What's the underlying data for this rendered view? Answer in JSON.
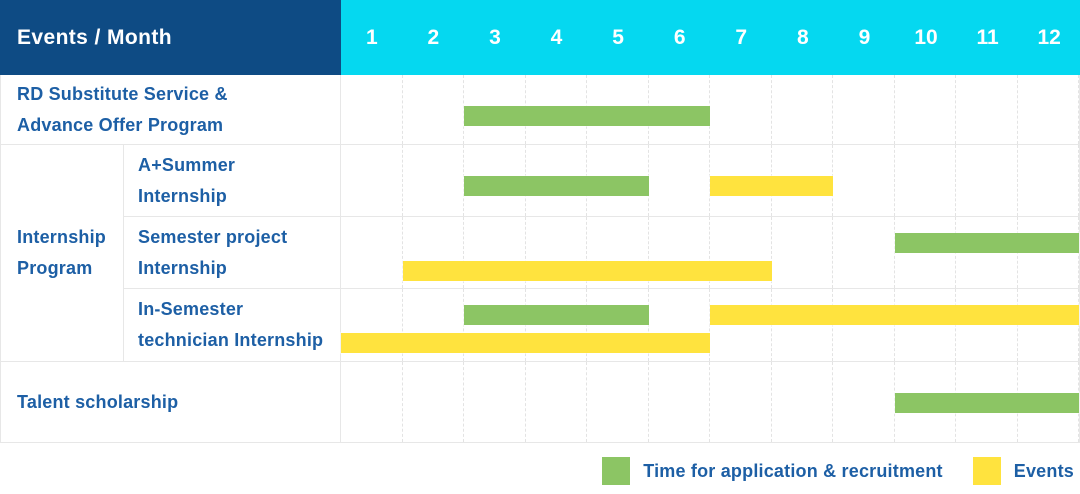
{
  "colors": {
    "navy": "#0E4B84",
    "cyan": "#05D8F0",
    "green": "#8CC564",
    "yellow": "#FFE33E",
    "label_blue": "#1D5FA5",
    "grid_line": "#E7E7E7"
  },
  "header": {
    "title": "Events / Month",
    "months": [
      "1",
      "2",
      "3",
      "4",
      "5",
      "6",
      "7",
      "8",
      "9",
      "10",
      "11",
      "12"
    ]
  },
  "group": {
    "label_lines": [
      "Internship",
      "Program"
    ]
  },
  "rows": [
    {
      "label_lines": [
        "RD Substitute Service &",
        "Advance Offer Program"
      ],
      "in_group": false,
      "bars": [
        {
          "type": "green",
          "start_month": 3,
          "end_month": 6,
          "track": "single"
        }
      ]
    },
    {
      "label_lines": [
        "A+Summer",
        "Internship"
      ],
      "in_group": true,
      "bars": [
        {
          "type": "green",
          "start_month": 3,
          "end_month": 5,
          "track": "single"
        },
        {
          "type": "yellow",
          "start_month": 7,
          "end_month": 8,
          "track": "single"
        }
      ]
    },
    {
      "label_lines": [
        "Semester project",
        "Internship"
      ],
      "in_group": true,
      "bars": [
        {
          "type": "green",
          "start_month": 10,
          "end_month": 12,
          "track": "upper"
        },
        {
          "type": "yellow",
          "start_month": 2,
          "end_month": 7,
          "track": "lower"
        }
      ]
    },
    {
      "label_lines": [
        "In-Semester",
        "technician Internship"
      ],
      "in_group": true,
      "bars": [
        {
          "type": "green",
          "start_month": 3,
          "end_month": 5,
          "track": "upper"
        },
        {
          "type": "yellow",
          "start_month": 7,
          "end_month": 12,
          "track": "upper"
        },
        {
          "type": "yellow",
          "start_month": 1,
          "end_month": 6,
          "track": "lower"
        }
      ]
    },
    {
      "label_lines": [
        "Talent scholarship"
      ],
      "in_group": false,
      "bars": [
        {
          "type": "green",
          "start_month": 10,
          "end_month": 12,
          "track": "single"
        }
      ]
    }
  ],
  "legend": [
    {
      "type": "green",
      "label": "Time for application & recruitment"
    },
    {
      "type": "yellow",
      "label": "Events"
    }
  ],
  "chart_data": {
    "type": "table",
    "title": "Events / Month",
    "x_unit": "month",
    "x_range": [
      1,
      12
    ],
    "series_legend": {
      "green": "Time for application & recruitment",
      "yellow": "Events"
    },
    "events": [
      {
        "event": "RD Substitute Service & Advance Offer Program",
        "group": null,
        "application_recruitment_months": [
          [
            3,
            6
          ]
        ],
        "events_months": []
      },
      {
        "event": "A+Summer Internship",
        "group": "Internship Program",
        "application_recruitment_months": [
          [
            3,
            5
          ]
        ],
        "events_months": [
          [
            7,
            8
          ]
        ]
      },
      {
        "event": "Semester project Internship",
        "group": "Internship Program",
        "application_recruitment_months": [
          [
            10,
            12
          ]
        ],
        "events_months": [
          [
            2,
            7
          ]
        ]
      },
      {
        "event": "In-Semester technician Internship",
        "group": "Internship Program",
        "application_recruitment_months": [
          [
            3,
            5
          ]
        ],
        "events_months": [
          [
            7,
            12
          ],
          [
            1,
            6
          ]
        ]
      },
      {
        "event": "Talent scholarship",
        "group": null,
        "application_recruitment_months": [
          [
            10,
            12
          ]
        ],
        "events_months": []
      }
    ]
  }
}
